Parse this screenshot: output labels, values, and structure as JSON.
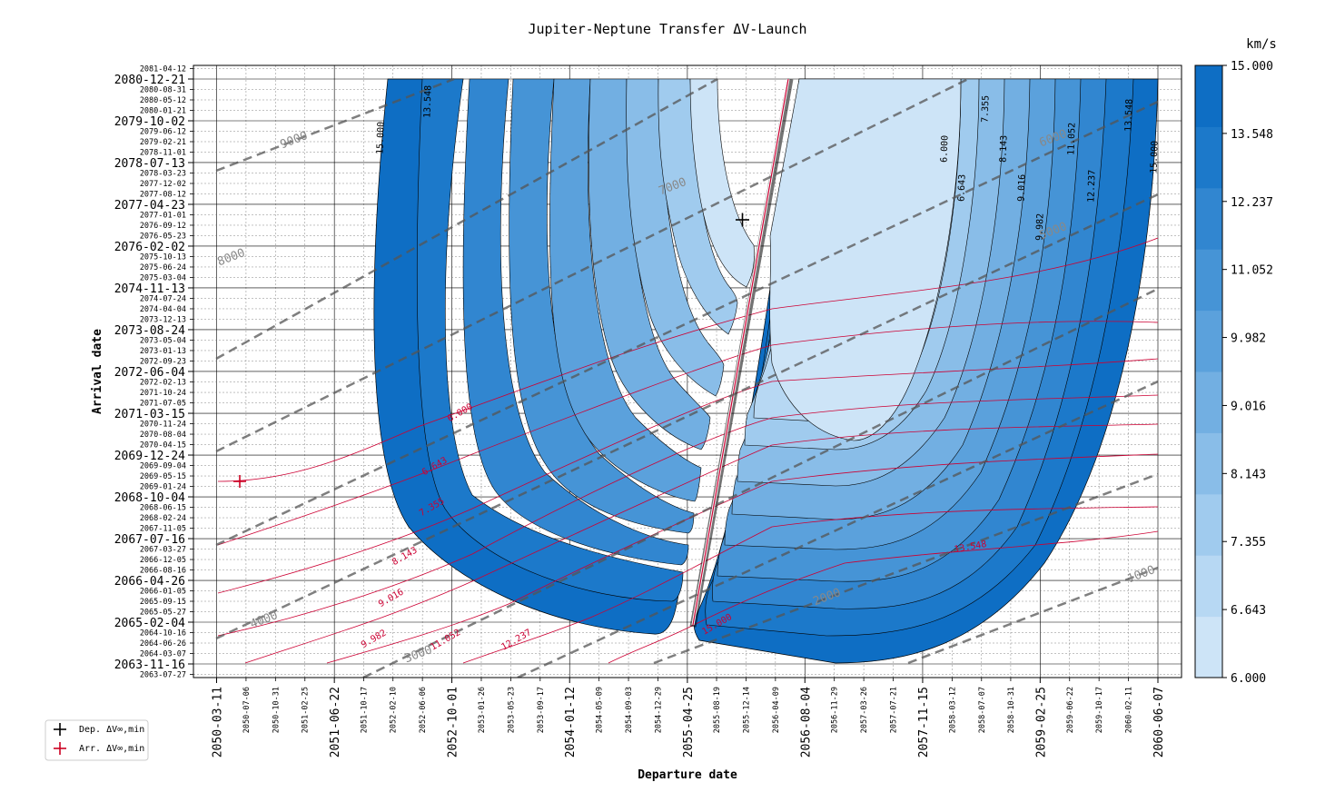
{
  "chart_data": {
    "type": "contour",
    "title": "Jupiter-Neptune Transfer ΔV-Launch",
    "xlabel": "Departure date",
    "ylabel": "Arrival date",
    "xlim": [
      "2050-03-11",
      "2060-06-07"
    ],
    "ylim": [
      "2063-11-16",
      "2080-12-21"
    ],
    "x_major_ticks": [
      "2050-03-11",
      "2051-06-22",
      "2052-10-01",
      "2054-01-12",
      "2055-04-25",
      "2056-08-04",
      "2057-11-15",
      "2059-02-25",
      "2060-06-07"
    ],
    "x_minor_ticks": [
      "2050-07-06",
      "2050-10-31",
      "2051-02-25",
      "2051-10-17",
      "2052-02-10",
      "2052-06-06",
      "2053-01-26",
      "2053-05-23",
      "2053-09-17",
      "2054-05-09",
      "2054-09-03",
      "2054-12-29",
      "2055-08-19",
      "2055-12-14",
      "2056-04-09",
      "2056-11-29",
      "2057-03-26",
      "2057-07-21",
      "2058-03-12",
      "2058-07-07",
      "2058-10-31",
      "2059-06-22",
      "2059-10-17",
      "2060-02-11"
    ],
    "y_major_ticks": [
      "2063-11-16",
      "2065-02-04",
      "2066-04-26",
      "2067-07-16",
      "2068-10-04",
      "2069-12-24",
      "2071-03-15",
      "2072-06-04",
      "2073-08-24",
      "2074-11-13",
      "2076-02-02",
      "2077-04-23",
      "2078-07-13",
      "2079-10-02",
      "2080-12-21"
    ],
    "y_minor_ticks": [
      "2063-07-27",
      "2064-03-07",
      "2064-06-26",
      "2064-10-16",
      "2065-05-27",
      "2065-09-15",
      "2066-01-05",
      "2066-08-16",
      "2066-12-05",
      "2067-03-27",
      "2067-11-05",
      "2068-02-24",
      "2068-06-15",
      "2069-01-24",
      "2069-05-15",
      "2069-09-04",
      "2070-04-15",
      "2070-08-04",
      "2070-11-24",
      "2071-07-05",
      "2071-10-24",
      "2072-02-13",
      "2072-09-23",
      "2073-01-13",
      "2073-05-04",
      "2073-12-13",
      "2074-04-04",
      "2074-07-24",
      "2075-03-04",
      "2075-06-24",
      "2075-10-13",
      "2076-05-23",
      "2076-09-12",
      "2077-01-01",
      "2077-08-12",
      "2077-12-02",
      "2078-03-23",
      "2078-11-01",
      "2079-02-21",
      "2079-06-12",
      "2080-01-21",
      "2080-05-12",
      "2080-08-31",
      "2081-04-12"
    ],
    "colorbar": {
      "unit": "km/s",
      "levels": [
        6.0,
        6.643,
        7.355,
        8.143,
        9.016,
        9.982,
        11.052,
        12.237,
        13.548,
        15.0
      ],
      "labels": [
        "15.000",
        "13.548",
        "12.237",
        "11.052",
        "9.982",
        "9.016",
        "8.143",
        "7.355",
        "6.643",
        "6.000"
      ],
      "colors": [
        "#cde4f7",
        "#b7d8f3",
        "#a0cbee",
        "#89bde8",
        "#72afe2",
        "#5ba1dc",
        "#4694d6",
        "#3186d0",
        "#1c79ca",
        "#0e6ec4"
      ]
    },
    "black_contour_labels": [
      "15.000",
      "13.548",
      "6.000",
      "6.643",
      "7.355",
      "8.143",
      "9.016",
      "9.982",
      "11.052",
      "12.237",
      "13.548",
      "15.000"
    ],
    "red_contour_labels": [
      "6.000",
      "6.643",
      "7.355",
      "8.143",
      "9.016",
      "9.982",
      "11.052",
      "12.237",
      "13.548",
      "15.000"
    ],
    "tof_lines_days": [
      "9000",
      "8000",
      "7000",
      "6000",
      "5000",
      "4000",
      "3000",
      "2000",
      "1000"
    ],
    "dep_min_marker": {
      "departure": "2055-12-14",
      "arrival": "2077-02-01"
    },
    "arr_min_marker": {
      "departure": "2050-05-10",
      "arrival": "2069-02-25"
    },
    "legend": {
      "position": "bottom-left",
      "entries": [
        "Dep. ΔV∞,min",
        "Arr. ΔV∞,min"
      ]
    },
    "grid": true
  },
  "colors": {
    "dep_marker": "#000000",
    "arr_marker": "#cc0022",
    "tof_line": "#555555"
  }
}
